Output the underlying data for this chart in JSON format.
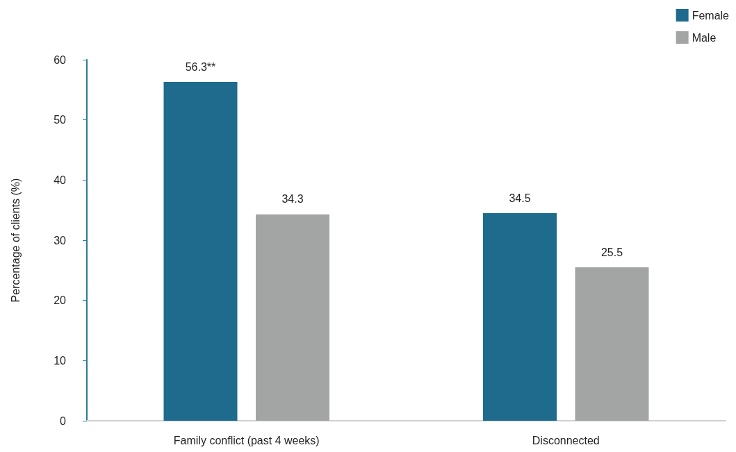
{
  "chart_data": {
    "type": "bar",
    "categories": [
      "Family conflict (past 4 weeks)",
      "Disconnected"
    ],
    "series": [
      {
        "name": "Female",
        "color": "#1f6b8e",
        "values": [
          56.3,
          34.5
        ],
        "value_labels": [
          "56.3**",
          "34.5"
        ]
      },
      {
        "name": "Male",
        "color": "#a3a5a4",
        "values": [
          34.3,
          25.5
        ],
        "value_labels": [
          "34.3",
          "25.5"
        ]
      }
    ],
    "ylabel": "Percentage of clients (%)",
    "ylim": [
      0,
      60
    ],
    "yticks": [
      0,
      10,
      20,
      30,
      40,
      50,
      60
    ],
    "grid": false,
    "legend": "top right"
  }
}
